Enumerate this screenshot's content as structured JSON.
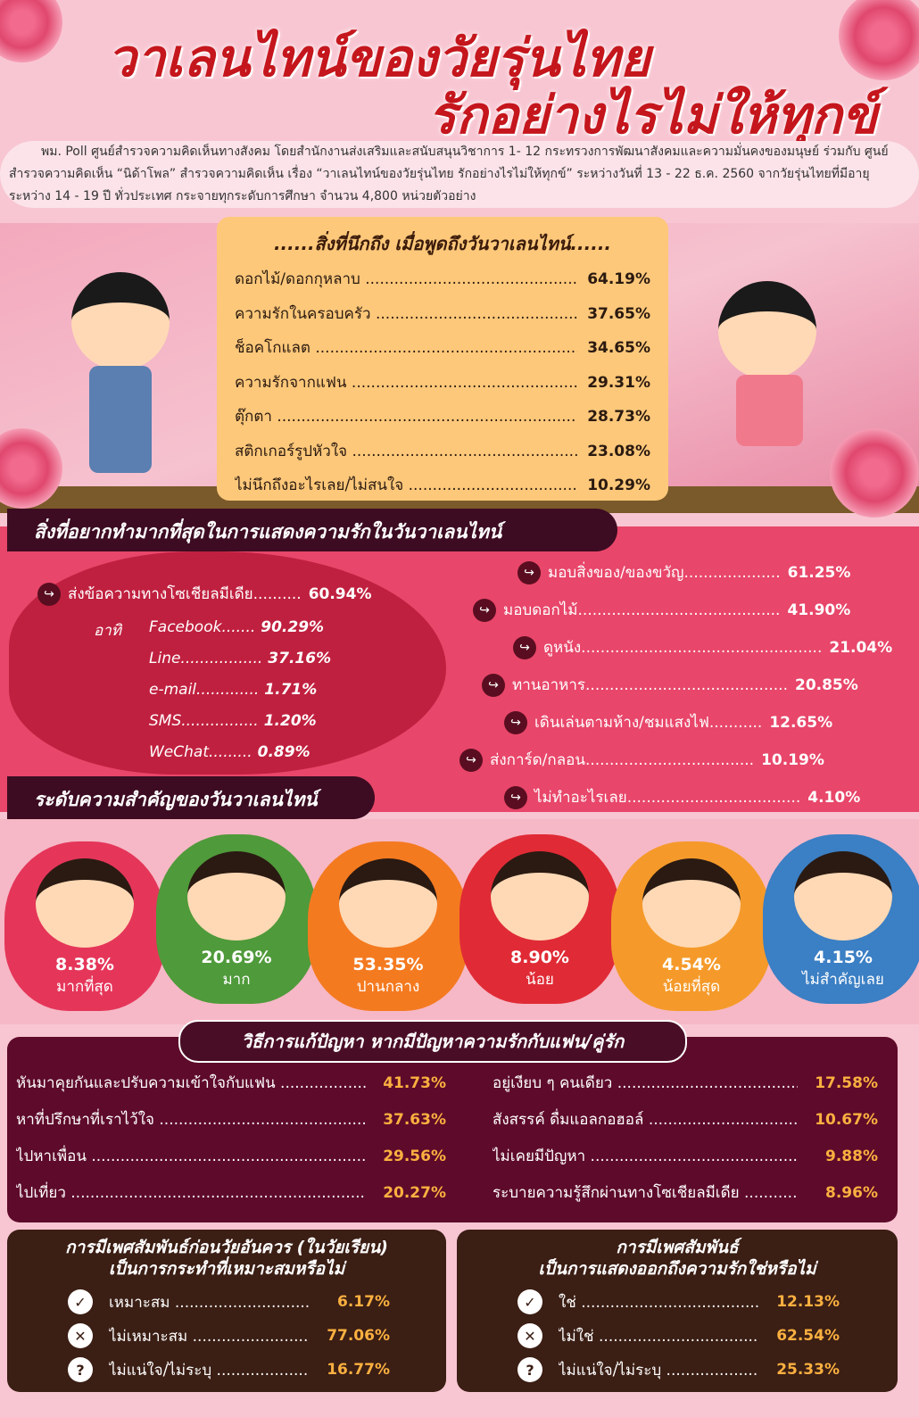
{
  "title": {
    "line1": "วาเลนไทน์ของวัยรุ่นไทย",
    "line2": "รักอย่างไรไม่ให้ทุกข์"
  },
  "intro": "พม. Poll ศูนย์สำรวจความคิดเห็นทางสังคม โดยสำนักงานส่งเสริมและสนับสนุนวิชาการ 1- 12 กระทรวงการพัฒนาสังคมและความมั่นคงของมนุษย์ ร่วมกับ ศูนย์สำรวจความคิดเห็น “นิด้าโพล” สำรวจความคิดเห็น เรื่อง “วาเลนไทน์ของวัยรุ่นไทย รักอย่างไรไม่ให้ทุกข์” ระหว่างวันที่ 13 - 22 ธ.ค. 2560 จากวัยรุ่นไทยที่มีอายุระหว่าง 14 - 19 ปี ทั่วประเทศ กระจายทุกระดับการศึกษา จำนวน 4,800 หน่วยตัวอย่าง",
  "think": {
    "title": "......สิ่งที่นึกถึง เมื่อพูดถึงวันวาเลนไทน์......",
    "items": [
      {
        "label": "ดอกไม้/ดอกกุหลาบ",
        "value": "64.19%"
      },
      {
        "label": "ความรักในครอบครัว",
        "value": "37.65%"
      },
      {
        "label": "ช็อคโกแลต",
        "value": "34.65%"
      },
      {
        "label": "ความรักจากแฟน",
        "value": "29.31%"
      },
      {
        "label": "ตุ๊กตา",
        "value": "28.73%"
      },
      {
        "label": "สติกเกอร์รูปหัวใจ",
        "value": "23.08%"
      },
      {
        "label": "ไม่นึกถึงอะไรเลย/ไม่สนใจ",
        "value": "10.29%"
      }
    ]
  },
  "express": {
    "title": "สิ่งที่อยากทำมากที่สุดในการแสดงความรักในวันวาเลนไทน์",
    "social": {
      "label": "ส่งข้อความทางโซเชียลมีเดีย..........",
      "value": "60.94%",
      "prefix": "อาทิ",
      "subs": [
        {
          "label": "Facebook.......",
          "value": "90.29%"
        },
        {
          "label": "Line.................",
          "value": "37.16%"
        },
        {
          "label": "e-mail.............",
          "value": "1.71%"
        },
        {
          "label": "SMS................",
          "value": "1.20%"
        },
        {
          "label": "WeChat.........",
          "value": "0.89%"
        }
      ]
    },
    "items": [
      {
        "label": "มอบสิ่งของ/ของขวัญ....................",
        "value": "61.25%"
      },
      {
        "label": "มอบดอกไม้..........................................",
        "value": "41.90%"
      },
      {
        "label": "ดูหนัง..................................................",
        "value": "21.04%"
      },
      {
        "label": "ทานอาหาร..........................................",
        "value": "20.85%"
      },
      {
        "label": "เดินเล่นตามห้าง/ชมแสงไฟ...........",
        "value": "12.65%"
      },
      {
        "label": "ส่งการ์ด/กลอน...................................",
        "value": "10.19%"
      },
      {
        "label": "ไม่ทำอะไรเลย....................................",
        "value": "4.10%"
      }
    ]
  },
  "importance": {
    "title": "ระดับความสำคัญของวันวาเลนไทน์",
    "levels": [
      {
        "value": "8.38%",
        "label": "มากที่สุด",
        "color": "#e5365a"
      },
      {
        "value": "20.69%",
        "label": "มาก",
        "color": "#4f9a3a"
      },
      {
        "value": "53.35%",
        "label": "ปานกลาง",
        "color": "#f47a20"
      },
      {
        "value": "8.90%",
        "label": "น้อย",
        "color": "#e02b36"
      },
      {
        "value": "4.54%",
        "label": "น้อยที่สุด",
        "color": "#f59a2a"
      },
      {
        "value": "4.15%",
        "label": "ไม่สำคัญเลย",
        "color": "#3b7fc4"
      }
    ]
  },
  "solve": {
    "title": "วิธีการแก้ปัญหา หากมีปัญหาความรักกับแฟน/คู่รัก",
    "left": [
      {
        "label": "หันมาคุยกันและปรับความเข้าใจกับแฟน",
        "value": "41.73%"
      },
      {
        "label": "หาที่ปรึกษาที่เราไว้ใจ",
        "value": "37.63%"
      },
      {
        "label": "ไปหาเพื่อน",
        "value": "29.56%"
      },
      {
        "label": "ไปเที่ยว",
        "value": "20.27%"
      }
    ],
    "right": [
      {
        "label": "อยู่เงียบ ๆ คนเดียว",
        "value": "17.58%"
      },
      {
        "label": "สังสรรค์ ดื่มแอลกอฮอล์",
        "value": "10.67%"
      },
      {
        "label": "ไม่เคยมีปัญหา",
        "value": "9.88%"
      },
      {
        "label": "ระบายความรู้สึกผ่านทางโซเชียลมีเดีย",
        "value": "8.96%"
      }
    ]
  },
  "sex1": {
    "title1": "การมีเพศสัมพันธ์ก่อนวัยอันควร (ในวัยเรียน)",
    "title2": "เป็นการกระทำที่เหมาะสมหรือไม่",
    "items": [
      {
        "icon": "✓",
        "label": "เหมาะสม",
        "value": "6.17%"
      },
      {
        "icon": "✕",
        "label": "ไม่เหมาะสม",
        "value": "77.06%"
      },
      {
        "icon": "?",
        "label": "ไม่แน่ใจ/ไม่ระบุ",
        "value": "16.77%"
      }
    ]
  },
  "sex2": {
    "title1": "การมีเพศสัมพันธ์",
    "title2": "เป็นการแสดงออกถึงความรักใช่หรือไม่",
    "items": [
      {
        "icon": "✓",
        "label": "ใช่",
        "value": "12.13%"
      },
      {
        "icon": "✕",
        "label": "ไม่ใช่",
        "value": "62.54%"
      },
      {
        "icon": "?",
        "label": "ไม่แน่ใจ/ไม่ระบุ",
        "value": "25.33%"
      }
    ]
  }
}
